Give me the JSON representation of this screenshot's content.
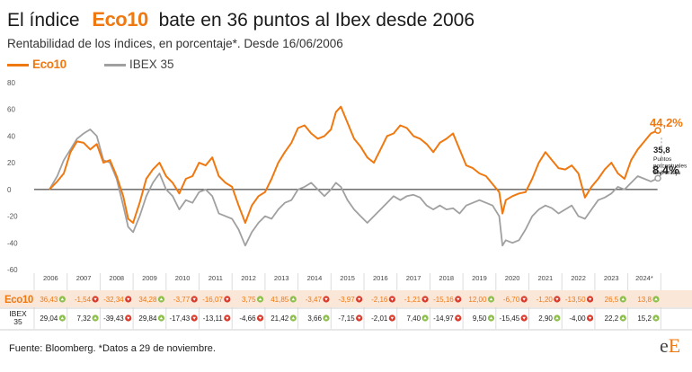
{
  "title": {
    "prefix": "El índice",
    "brand": "Eco10",
    "suffix": "bate en 36 puntos al Ibex desde 2006"
  },
  "subtitle": "Rentabilidad de los índices, en porcentaje*. Desde 16/06/2006",
  "colors": {
    "eco10": "#f07810",
    "ibex": "#a0a0a0",
    "positive": "#8cbf4a",
    "negative": "#d93a2b",
    "row_shade": "#fbe7d8"
  },
  "footer": "Fuente: Bloomberg. *Datos a 29 de noviembre.",
  "logo": {
    "e": "e",
    "E": "E"
  },
  "chart_data": {
    "type": "line",
    "yticks": [
      80,
      60,
      40,
      20,
      0,
      -20,
      -40,
      -60
    ],
    "ylim": [
      -60,
      80
    ],
    "xlabels": [
      "2006",
      "2007",
      "2008",
      "2009",
      "2010",
      "2011",
      "2012",
      "2013",
      "2014",
      "2015",
      "2016",
      "2017",
      "2018",
      "2019",
      "2020",
      "2021",
      "2022",
      "2023",
      "2024*"
    ],
    "series": [
      {
        "name": "Eco10",
        "color": "#f07810",
        "x": [
          2006.46,
          2006.7,
          2006.9,
          2007.1,
          2007.3,
          2007.5,
          2007.7,
          2007.9,
          2008.1,
          2008.3,
          2008.5,
          2008.7,
          2008.85,
          2009.0,
          2009.2,
          2009.4,
          2009.6,
          2009.8,
          2010.0,
          2010.2,
          2010.4,
          2010.6,
          2010.8,
          2011.0,
          2011.2,
          2011.4,
          2011.6,
          2011.8,
          2012.0,
          2012.2,
          2012.4,
          2012.6,
          2012.8,
          2013.0,
          2013.2,
          2013.4,
          2013.6,
          2013.8,
          2014.0,
          2014.2,
          2014.4,
          2014.6,
          2014.8,
          2015.0,
          2015.15,
          2015.3,
          2015.5,
          2015.7,
          2015.9,
          2016.1,
          2016.3,
          2016.5,
          2016.7,
          2016.9,
          2017.1,
          2017.3,
          2017.5,
          2017.7,
          2017.9,
          2018.1,
          2018.3,
          2018.5,
          2018.7,
          2018.9,
          2019.1,
          2019.3,
          2019.5,
          2019.7,
          2019.9,
          2020.1,
          2020.2,
          2020.3,
          2020.5,
          2020.7,
          2020.9,
          2021.1,
          2021.3,
          2021.5,
          2021.7,
          2021.9,
          2022.1,
          2022.3,
          2022.5,
          2022.7,
          2022.9,
          2023.1,
          2023.3,
          2023.5,
          2023.7,
          2023.9,
          2024.1,
          2024.3,
          2024.5,
          2024.7,
          2024.91
        ],
        "y": [
          0,
          6,
          12,
          28,
          36,
          35,
          30,
          34,
          20,
          22,
          10,
          -5,
          -22,
          -25,
          -10,
          8,
          15,
          20,
          10,
          5,
          -3,
          8,
          10,
          20,
          18,
          24,
          10,
          5,
          2,
          -12,
          -25,
          -12,
          -5,
          -2,
          8,
          20,
          28,
          35,
          46,
          48,
          42,
          38,
          40,
          45,
          58,
          62,
          50,
          38,
          32,
          24,
          20,
          30,
          40,
          42,
          48,
          46,
          40,
          38,
          34,
          28,
          35,
          38,
          42,
          30,
          18,
          16,
          12,
          10,
          4,
          -2,
          -18,
          -8,
          -5,
          -3,
          -2,
          8,
          20,
          28,
          22,
          16,
          15,
          18,
          12,
          -6,
          2,
          8,
          15,
          20,
          12,
          8,
          22,
          30,
          36,
          42,
          44.2
        ]
      },
      {
        "name": "IBEX 35",
        "color": "#a0a0a0",
        "x": [
          2006.46,
          2006.7,
          2006.9,
          2007.1,
          2007.3,
          2007.5,
          2007.7,
          2007.9,
          2008.1,
          2008.3,
          2008.5,
          2008.7,
          2008.85,
          2009.0,
          2009.2,
          2009.4,
          2009.6,
          2009.8,
          2010.0,
          2010.2,
          2010.4,
          2010.6,
          2010.8,
          2011.0,
          2011.2,
          2011.4,
          2011.6,
          2011.8,
          2012.0,
          2012.2,
          2012.4,
          2012.6,
          2012.8,
          2013.0,
          2013.2,
          2013.4,
          2013.6,
          2013.8,
          2014.0,
          2014.2,
          2014.4,
          2014.6,
          2014.8,
          2015.0,
          2015.15,
          2015.3,
          2015.5,
          2015.7,
          2015.9,
          2016.1,
          2016.3,
          2016.5,
          2016.7,
          2016.9,
          2017.1,
          2017.3,
          2017.5,
          2017.7,
          2017.9,
          2018.1,
          2018.3,
          2018.5,
          2018.7,
          2018.9,
          2019.1,
          2019.3,
          2019.5,
          2019.7,
          2019.9,
          2020.1,
          2020.2,
          2020.3,
          2020.5,
          2020.7,
          2020.9,
          2021.1,
          2021.3,
          2021.5,
          2021.7,
          2021.9,
          2022.1,
          2022.3,
          2022.5,
          2022.7,
          2022.9,
          2023.1,
          2023.3,
          2023.5,
          2023.7,
          2023.9,
          2024.1,
          2024.3,
          2024.5,
          2024.7,
          2024.91
        ],
        "y": [
          0,
          10,
          22,
          30,
          38,
          42,
          45,
          40,
          22,
          20,
          8,
          -12,
          -28,
          -32,
          -20,
          -5,
          5,
          12,
          0,
          -5,
          -15,
          -8,
          -10,
          -2,
          0,
          -5,
          -18,
          -20,
          -22,
          -30,
          -42,
          -32,
          -25,
          -20,
          -22,
          -15,
          -10,
          -8,
          0,
          2,
          5,
          0,
          -5,
          0,
          5,
          2,
          -8,
          -15,
          -20,
          -25,
          -20,
          -15,
          -10,
          -5,
          -8,
          -5,
          -4,
          -6,
          -12,
          -15,
          -12,
          -15,
          -14,
          -18,
          -12,
          -10,
          -8,
          -10,
          -12,
          -20,
          -42,
          -38,
          -40,
          -38,
          -30,
          -20,
          -15,
          -12,
          -14,
          -18,
          -15,
          -12,
          -20,
          -22,
          -15,
          -8,
          -6,
          -3,
          2,
          0,
          5,
          10,
          8,
          6,
          8.4
        ]
      }
    ],
    "annotations": {
      "eco10_last": "44,2%",
      "ibex_last": "8,4%",
      "diff_value": "35,8",
      "diff_text": [
        "Puntos",
        "porcentuales",
        "de ventaja"
      ]
    },
    "table": {
      "rows": [
        {
          "label": "Eco10",
          "values": [
            "36,43",
            "-1,54",
            "-32,34",
            "34,28",
            "-3,77",
            "-16,07",
            "3,75",
            "41,85",
            "-3,47",
            "-3,97",
            "-2,16",
            "-1,21",
            "-15,16",
            "12,00",
            "-6,70",
            "-1,20",
            "-13,50",
            "26,5",
            "13,8"
          ]
        },
        {
          "label": "IBEX 35",
          "values": [
            "29,04",
            "7,32",
            "-39,43",
            "29,84",
            "-17,43",
            "-13,11",
            "-4,66",
            "21,42",
            "3,66",
            "-7,15",
            "-2,01",
            "7,40",
            "-14,97",
            "9,50",
            "-15,45",
            "2,90",
            "-4,00",
            "22,2",
            "15,2"
          ]
        }
      ]
    }
  }
}
